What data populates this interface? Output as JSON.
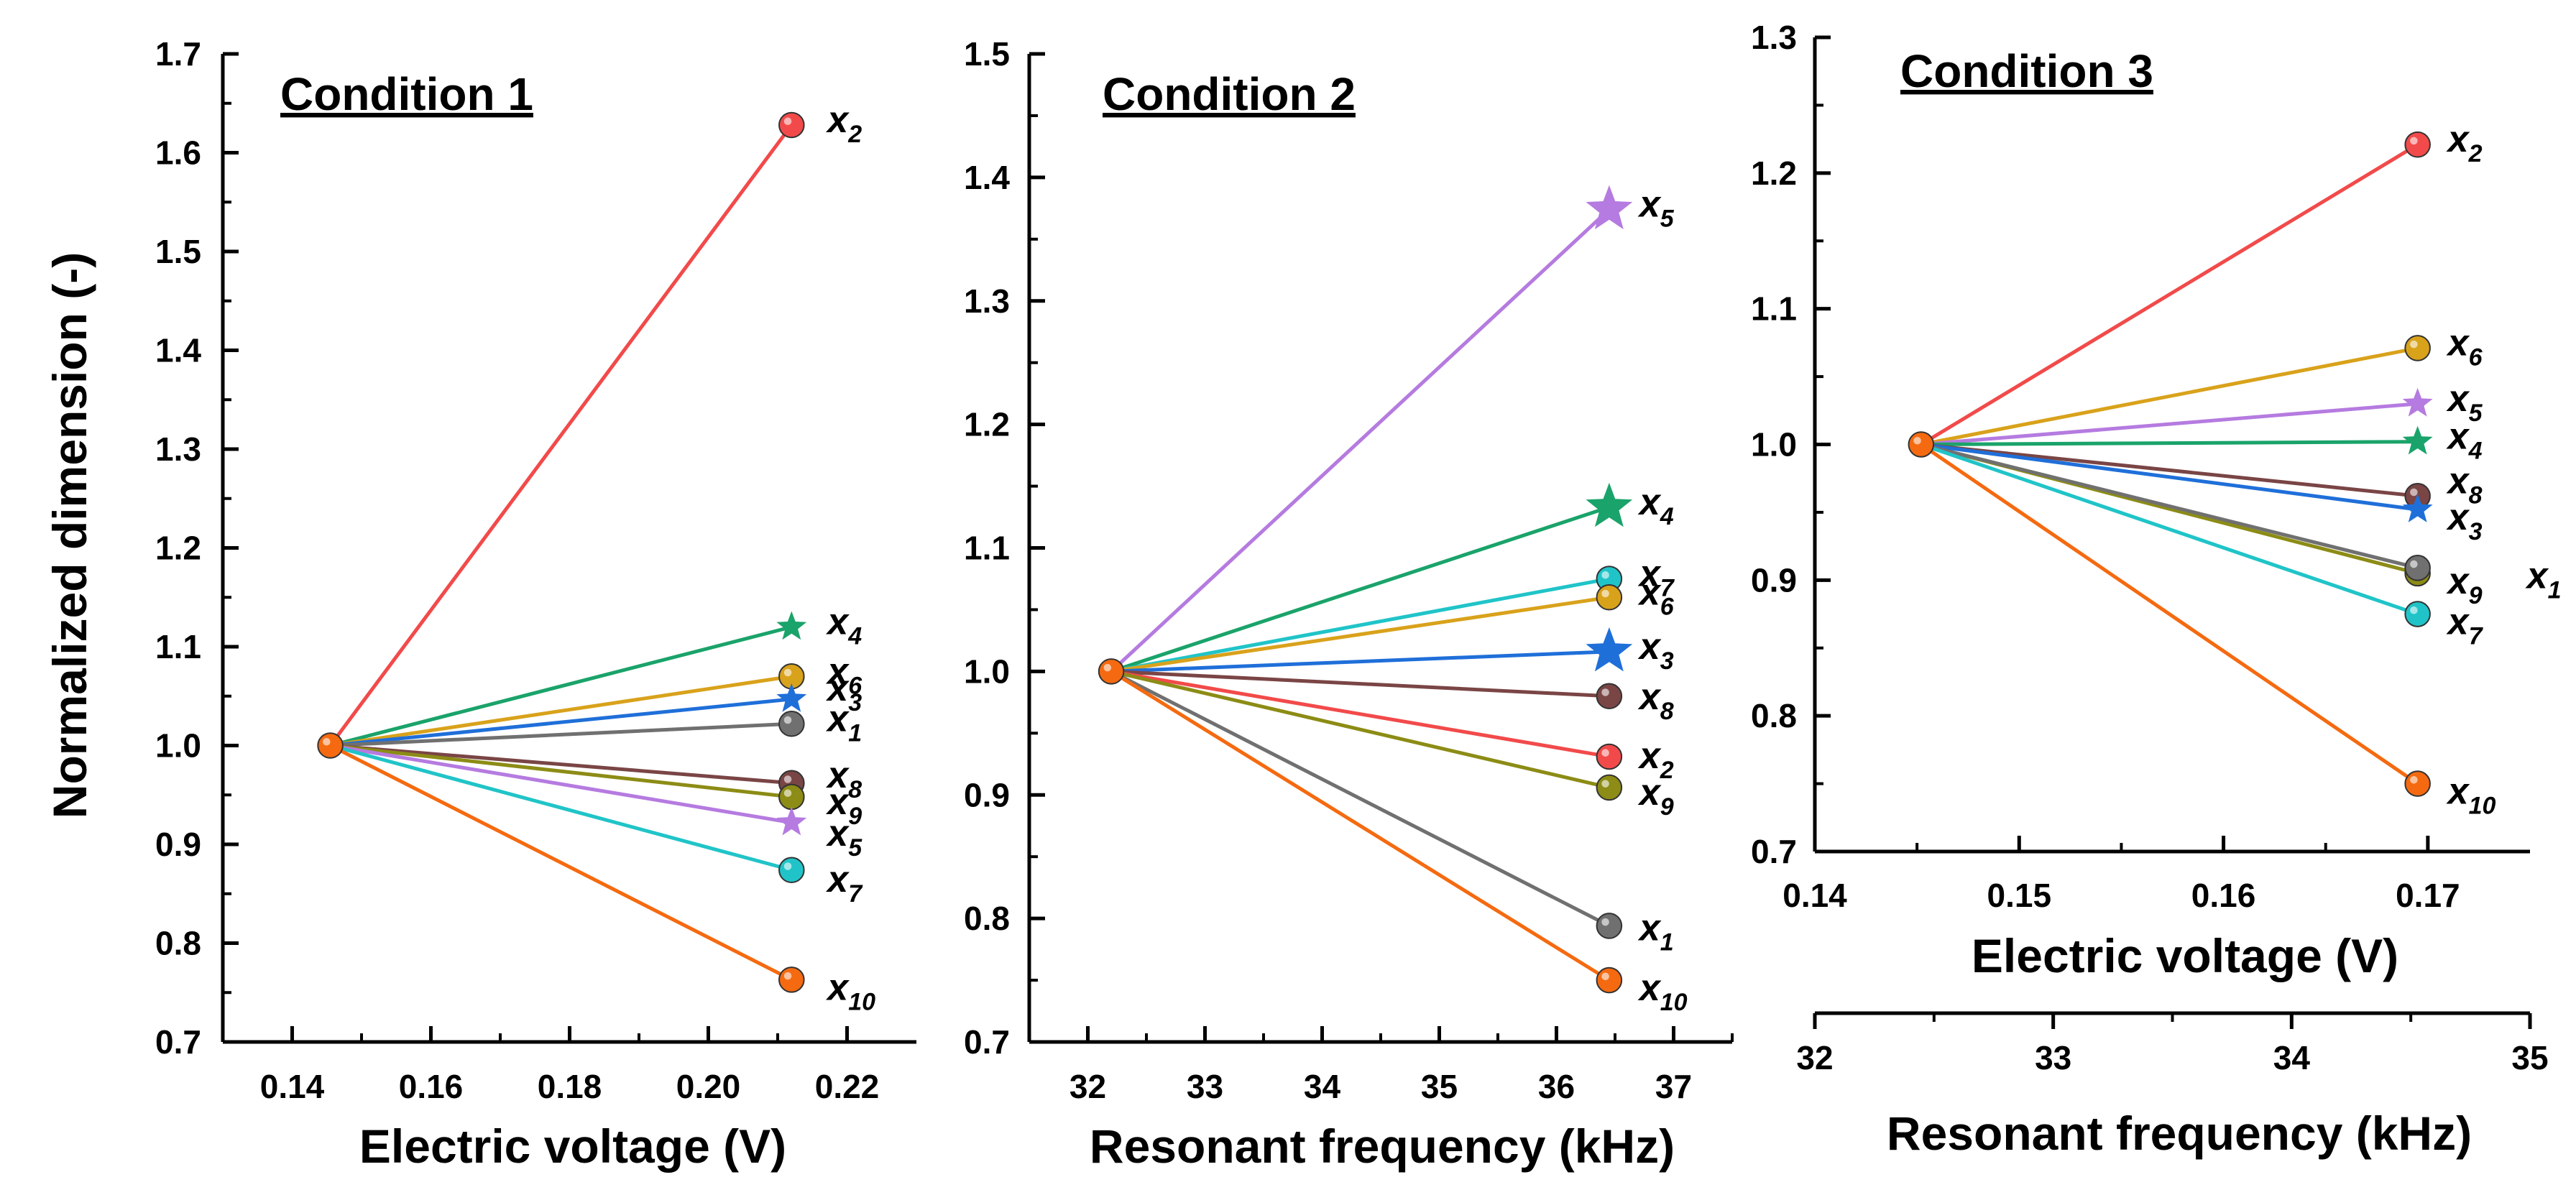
{
  "chart_data": [
    {
      "type": "line",
      "title": "Condition 1",
      "xlabel": "Electric voltage (V)",
      "ylabel": "Normalized dimension (-)",
      "xlim": [
        0.13,
        0.23
      ],
      "ylim": [
        0.7,
        1.7
      ],
      "xticks": [
        "0.14",
        "0.16",
        "0.18",
        "0.20",
        "0.22"
      ],
      "yticks": [
        "0.7",
        "0.8",
        "0.9",
        "1.0",
        "1.1",
        "1.2",
        "1.3",
        "1.4",
        "1.5",
        "1.6",
        "1.7"
      ],
      "origin": {
        "x": 0.1455,
        "y": 1.0
      },
      "series": [
        {
          "name": "x2",
          "label_main": "x",
          "label_sub": "2",
          "x_end": 0.212,
          "y_end": 1.628,
          "color": "#f24a4a",
          "marker": "circle"
        },
        {
          "name": "x4",
          "label_main": "x",
          "label_sub": "4",
          "x_end": 0.212,
          "y_end": 1.12,
          "color": "#1aa36a",
          "marker": "star"
        },
        {
          "name": "x6",
          "label_main": "x",
          "label_sub": "6",
          "x_end": 0.212,
          "y_end": 1.07,
          "color": "#d9a21b",
          "marker": "circle"
        },
        {
          "name": "x3",
          "label_main": "x",
          "label_sub": "3",
          "x_end": 0.212,
          "y_end": 1.047,
          "color": "#1f6fd9",
          "marker": "star"
        },
        {
          "name": "x1",
          "label_main": "x",
          "label_sub": "1",
          "x_end": 0.212,
          "y_end": 1.022,
          "color": "#707070",
          "marker": "circle"
        },
        {
          "name": "x8",
          "label_main": "x",
          "label_sub": "8",
          "x_end": 0.212,
          "y_end": 0.962,
          "color": "#7a4545",
          "marker": "circle"
        },
        {
          "name": "x9",
          "label_main": "x",
          "label_sub": "9",
          "x_end": 0.212,
          "y_end": 0.948,
          "color": "#8c8c16",
          "marker": "circle"
        },
        {
          "name": "x5",
          "label_main": "x",
          "label_sub": "5",
          "x_end": 0.212,
          "y_end": 0.922,
          "color": "#b57be0",
          "marker": "star"
        },
        {
          "name": "x7",
          "label_main": "x",
          "label_sub": "7",
          "x_end": 0.212,
          "y_end": 0.874,
          "color": "#20c4c8",
          "marker": "circle"
        },
        {
          "name": "x10",
          "label_main": "x",
          "label_sub": "10",
          "x_end": 0.212,
          "y_end": 0.763,
          "color": "#f56a10",
          "marker": "circle"
        }
      ]
    },
    {
      "type": "line",
      "title": "Condition 2",
      "xlabel": "Resonant frequency (kHz)",
      "ylabel": "",
      "xlim": [
        31.5,
        37.5
      ],
      "ylim": [
        0.7,
        1.5
      ],
      "xticks": [
        "32",
        "33",
        "34",
        "35",
        "36",
        "37"
      ],
      "yticks": [
        "0.7",
        "0.8",
        "0.9",
        "1.0",
        "1.1",
        "1.2",
        "1.3",
        "1.4",
        "1.5"
      ],
      "origin": {
        "x": 32.2,
        "y": 1.0
      },
      "series": [
        {
          "name": "x5",
          "label_main": "x",
          "label_sub": "5",
          "x_end": 36.45,
          "y_end": 1.374,
          "color": "#b57be0",
          "marker": "star"
        },
        {
          "name": "x4",
          "label_main": "x",
          "label_sub": "4",
          "x_end": 36.45,
          "y_end": 1.133,
          "color": "#1aa36a",
          "marker": "star"
        },
        {
          "name": "x7",
          "label_main": "x",
          "label_sub": "7",
          "x_end": 36.45,
          "y_end": 1.075,
          "color": "#20c4c8",
          "marker": "circle"
        },
        {
          "name": "x6",
          "label_main": "x",
          "label_sub": "6",
          "x_end": 36.45,
          "y_end": 1.06,
          "color": "#d9a21b",
          "marker": "circle"
        },
        {
          "name": "x3",
          "label_main": "x",
          "label_sub": "3",
          "x_end": 36.45,
          "y_end": 1.016,
          "color": "#1f6fd9",
          "marker": "star"
        },
        {
          "name": "x8",
          "label_main": "x",
          "label_sub": "8",
          "x_end": 36.45,
          "y_end": 0.98,
          "color": "#7a4545",
          "marker": "circle"
        },
        {
          "name": "x2",
          "label_main": "x",
          "label_sub": "2",
          "x_end": 36.45,
          "y_end": 0.931,
          "color": "#f24a4a",
          "marker": "circle"
        },
        {
          "name": "x9",
          "label_main": "x",
          "label_sub": "9",
          "x_end": 36.45,
          "y_end": 0.906,
          "color": "#8c8c16",
          "marker": "circle"
        },
        {
          "name": "x1",
          "label_main": "x",
          "label_sub": "1",
          "x_end": 36.45,
          "y_end": 0.794,
          "color": "#707070",
          "marker": "circle"
        },
        {
          "name": "x10",
          "label_main": "x",
          "label_sub": "10",
          "x_end": 36.45,
          "y_end": 0.75,
          "color": "#f56a10",
          "marker": "circle"
        }
      ]
    },
    {
      "type": "line",
      "title": "Condition 3",
      "xlabel": "Electric voltage (V)",
      "ylabel": "",
      "xlim": [
        0.14,
        0.175
      ],
      "ylim": [
        0.7,
        1.3
      ],
      "xticks": [
        "0.14",
        "0.15",
        "0.16",
        "0.17"
      ],
      "yticks": [
        "0.7",
        "0.8",
        "0.9",
        "1.0",
        "1.1",
        "1.2",
        "1.3"
      ],
      "secondary_xlabel": "Resonant frequency (kHz)",
      "secondary_xlim": [
        32,
        35
      ],
      "secondary_xticks": [
        "32",
        "33",
        "34",
        "35"
      ],
      "origin": {
        "x": 0.1452,
        "y": 1.0
      },
      "series": [
        {
          "name": "x2",
          "label_main": "x",
          "label_sub": "2",
          "x_end": 0.1695,
          "y_end": 1.221,
          "color": "#f24a4a",
          "marker": "circle"
        },
        {
          "name": "x6",
          "label_main": "x",
          "label_sub": "6",
          "x_end": 0.1695,
          "y_end": 1.071,
          "color": "#d9a21b",
          "marker": "circle"
        },
        {
          "name": "x5",
          "label_main": "x",
          "label_sub": "5",
          "x_end": 0.1695,
          "y_end": 1.03,
          "color": "#b57be0",
          "marker": "star"
        },
        {
          "name": "x4",
          "label_main": "x",
          "label_sub": "4",
          "x_end": 0.1695,
          "y_end": 1.002,
          "color": "#1aa36a",
          "marker": "star"
        },
        {
          "name": "x8",
          "label_main": "x",
          "label_sub": "8",
          "x_end": 0.1695,
          "y_end": 0.962,
          "color": "#7a4545",
          "marker": "circle"
        },
        {
          "name": "x3",
          "label_main": "x",
          "label_sub": "3",
          "x_end": 0.1695,
          "y_end": 0.952,
          "color": "#1f6fd9",
          "marker": "star"
        },
        {
          "name": "x9",
          "label_main": "x",
          "label_sub": "9",
          "x_end": 0.1695,
          "y_end": 0.905,
          "color": "#8c8c16",
          "marker": "circle"
        },
        {
          "name": "x1",
          "label_main": "x",
          "label_sub": "1",
          "x_end": 0.1695,
          "y_end": 0.909,
          "color": "#707070",
          "marker": "circle"
        },
        {
          "name": "x7",
          "label_main": "x",
          "label_sub": "7",
          "x_end": 0.1695,
          "y_end": 0.875,
          "color": "#20c4c8",
          "marker": "circle"
        },
        {
          "name": "x10",
          "label_main": "x",
          "label_sub": "10",
          "x_end": 0.1695,
          "y_end": 0.75,
          "color": "#f56a10",
          "marker": "circle"
        }
      ]
    }
  ],
  "origin_marker_color": "#f56a10"
}
